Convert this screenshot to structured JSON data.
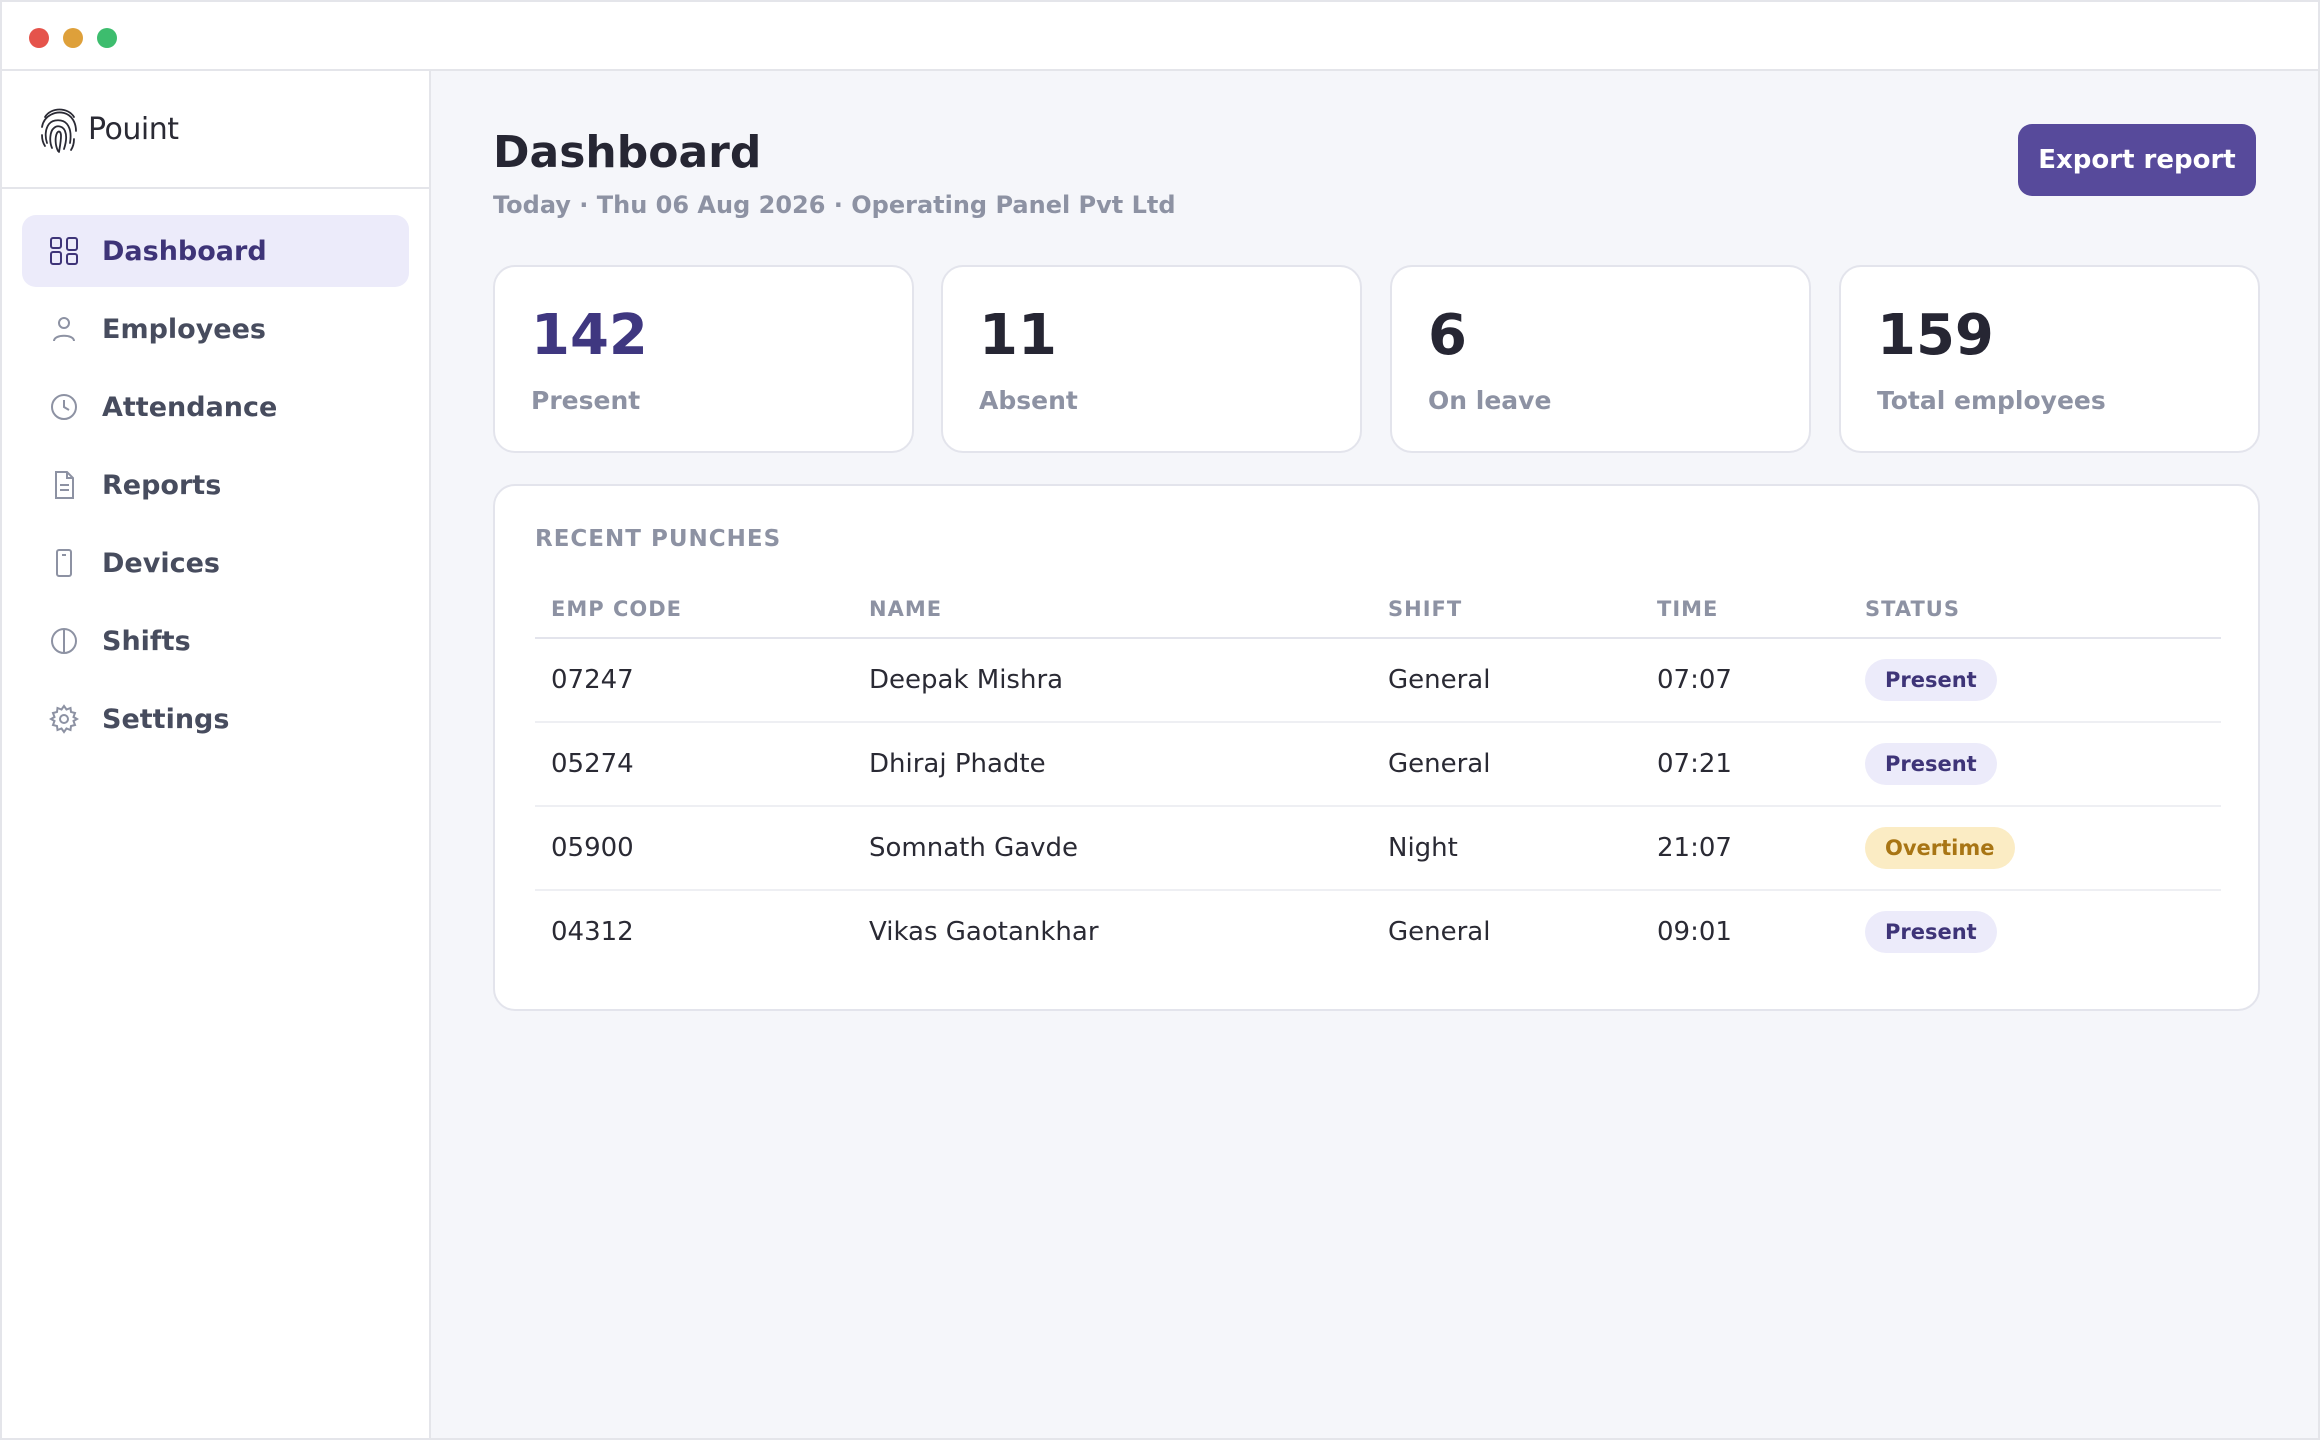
{
  "app": {
    "name": "Pouint"
  },
  "sidebar": {
    "items": [
      {
        "label": "Dashboard",
        "icon": "grid-icon",
        "active": true
      },
      {
        "label": "Employees",
        "icon": "user-icon"
      },
      {
        "label": "Attendance",
        "icon": "clock-icon"
      },
      {
        "label": "Reports",
        "icon": "document-icon"
      },
      {
        "label": "Devices",
        "icon": "device-icon"
      },
      {
        "label": "Shifts",
        "icon": "half-circle-icon"
      },
      {
        "label": "Settings",
        "icon": "gear-icon"
      }
    ]
  },
  "header": {
    "title": "Dashboard",
    "subtitle": "Today · Thu 06 Aug 2026 · Operating Panel Pvt Ltd",
    "export_label": "Export report"
  },
  "stats": [
    {
      "value": "142",
      "label": "Present"
    },
    {
      "value": "11",
      "label": "Absent"
    },
    {
      "value": "6",
      "label": "On leave"
    },
    {
      "value": "159",
      "label": "Total employees"
    }
  ],
  "recent_punches": {
    "title": "RECENT PUNCHES",
    "columns": [
      "EMP CODE",
      "NAME",
      "SHIFT",
      "TIME",
      "STATUS"
    ],
    "rows": [
      {
        "code": "07247",
        "name": "Deepak Mishra",
        "shift": "General",
        "time": "07:07",
        "status": "Present"
      },
      {
        "code": "05274",
        "name": "Dhiraj Phadte",
        "shift": "General",
        "time": "07:21",
        "status": "Present"
      },
      {
        "code": "05900",
        "name": "Somnath Gavde",
        "shift": "Night",
        "time": "21:07",
        "status": "Overtime"
      },
      {
        "code": "04312",
        "name": "Vikas Gaotankhar",
        "shift": "General",
        "time": "09:01",
        "status": "Present"
      }
    ]
  },
  "colors": {
    "accent": "#574a9b",
    "present_badge": "#ecebfa",
    "overtime_badge": "#fbecc4"
  }
}
